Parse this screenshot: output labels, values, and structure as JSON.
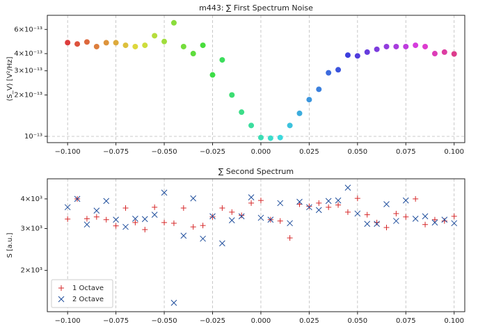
{
  "chart_data": [
    {
      "type": "scatter",
      "title": "m443: ∑ First Spectrum Noise",
      "y_label": "⟨S_V⟩ [V²/Hz]",
      "x": [
        -0.1,
        -0.095,
        -0.09,
        -0.085,
        -0.08,
        -0.075,
        -0.07,
        -0.065,
        -0.06,
        -0.055,
        -0.05,
        -0.045,
        -0.04,
        -0.035,
        -0.03,
        -0.025,
        -0.02,
        -0.015,
        -0.01,
        -0.005,
        0,
        0.005,
        0.01,
        0.015,
        0.02,
        0.025,
        0.03,
        0.035,
        0.04,
        0.045,
        0.05,
        0.055,
        0.06,
        0.065,
        0.07,
        0.075,
        0.08,
        0.085,
        0.09,
        0.095,
        0.1
      ],
      "values": [
        4.81e-13,
        4.7e-13,
        4.86e-13,
        4.5e-13,
        4.8e-13,
        4.8e-13,
        4.6e-13,
        4.5e-13,
        4.6e-13,
        5.4e-13,
        4.9e-13,
        6.7e-13,
        4.5e-13,
        4e-13,
        4.6e-13,
        2.8e-13,
        3.6e-13,
        2e-13,
        1.5e-13,
        1.2e-13,
        9.8e-14,
        9.7e-14,
        9.8e-14,
        1.2e-13,
        1.47e-13,
        1.85e-13,
        2.2e-13,
        2.9e-13,
        3.05e-13,
        3.9e-13,
        3.85e-13,
        4.1e-13,
        4.3e-13,
        4.5e-13,
        4.5e-13,
        4.5e-13,
        4.6e-13,
        4.5e-13,
        4e-13,
        4.1e-13,
        3.98e-13
      ],
      "marker": "o",
      "colormap": "hsv",
      "yscale": "log",
      "grid": true,
      "xlim": [
        -0.1105,
        0.1055
      ],
      "ylim": [
        9e-14,
        7.6e-13
      ],
      "xticks": [
        {
          "value": -0.1,
          "label": "−0.100"
        },
        {
          "value": -0.075,
          "label": "−0.075"
        },
        {
          "value": -0.05,
          "label": "−0.050"
        },
        {
          "value": -0.025,
          "label": "−0.025"
        },
        {
          "value": 0,
          "label": "0.000"
        },
        0.025,
        {
          "value": 0.05,
          "label": "0.050"
        },
        0.075,
        {
          "value": 0.1,
          "label": "0.100"
        }
      ],
      "yticks": [
        {
          "value": 1e-13,
          "label": "10⁻¹³"
        },
        {
          "value": 2e-13,
          "label": "2×10⁻¹³"
        },
        {
          "value": 3e-13,
          "label": "3×10⁻¹³"
        },
        {
          "value": 4e-13,
          "label": "4×10⁻¹³"
        },
        {
          "value": 6e-13,
          "label": "6×10⁻¹³"
        }
      ]
    },
    {
      "type": "scatter",
      "title": "∑ Second Spectrum",
      "y_label": "S [a.u.]",
      "x": [
        -0.1,
        -0.095,
        -0.09,
        -0.085,
        -0.08,
        -0.075,
        -0.07,
        -0.065,
        -0.06,
        -0.055,
        -0.05,
        -0.045,
        -0.04,
        -0.035,
        -0.03,
        -0.025,
        -0.02,
        -0.015,
        -0.01,
        -0.005,
        0,
        0.005,
        0.01,
        0.015,
        0.02,
        0.025,
        0.03,
        0.035,
        0.04,
        0.045,
        0.05,
        0.055,
        0.06,
        0.065,
        0.07,
        0.075,
        0.08,
        0.085,
        0.09,
        0.095,
        0.1
      ],
      "series": [
        {
          "name": "1 Octave",
          "color": "#d62728",
          "marker": "+",
          "values": [
            3290,
            4000,
            3300,
            3360,
            3270,
            3080,
            3660,
            3180,
            2970,
            3690,
            3180,
            3160,
            3660,
            3050,
            3090,
            3360,
            3660,
            3520,
            3410,
            3840,
            3940,
            3270,
            3230,
            2740,
            3800,
            3720,
            3840,
            3690,
            3770,
            3520,
            4020,
            3430,
            3180,
            3030,
            3470,
            3360,
            4000,
            3120,
            3270,
            3230,
            3380
          ]
        },
        {
          "name": "2 Octave",
          "color": "#1f4e9c",
          "marker": "x",
          "values": [
            3690,
            4000,
            3120,
            3570,
            3920,
            3270,
            3050,
            3300,
            3290,
            3430,
            4250,
            1460,
            2800,
            4020,
            2720,
            3380,
            2600,
            3250,
            3380,
            4060,
            3330,
            3270,
            3840,
            3160,
            3890,
            3690,
            3590,
            3920,
            3940,
            4460,
            3470,
            3140,
            3140,
            3800,
            3230,
            3940,
            3300,
            3380,
            3180,
            3270,
            3160
          ]
        }
      ],
      "yscale": "log",
      "grid": true,
      "legend": "lower left",
      "xlim": [
        -0.1105,
        0.1055
      ],
      "ylim": [
        1340,
        4860
      ],
      "xticks": [
        {
          "value": -0.1,
          "label": "−0.100"
        },
        {
          "value": -0.075,
          "label": "−0.075"
        },
        {
          "value": -0.05,
          "label": "−0.050"
        },
        {
          "value": -0.025,
          "label": "−0.025"
        },
        {
          "value": 0,
          "label": "0.000"
        },
        0.025,
        {
          "value": 0.05,
          "label": "0.050"
        },
        0.075,
        {
          "value": 0.1,
          "label": "0.100"
        }
      ],
      "yticks": [
        {
          "value": 2000,
          "label": "2×10³"
        },
        {
          "value": 3000,
          "label": "3×10³"
        },
        {
          "value": 4000,
          "label": "4×10³"
        }
      ]
    }
  ]
}
